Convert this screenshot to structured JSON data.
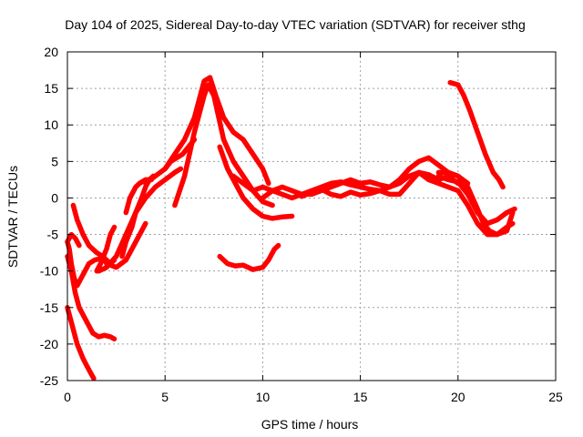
{
  "chart_data": {
    "type": "line",
    "title": "Day 104 of 2025, Sidereal Day-to-day VTEC variation (SDTVAR) for receiver sthg",
    "xlabel": "GPS time / hours",
    "ylabel": "SDTVAR / TECUs",
    "xlim": [
      0,
      25
    ],
    "ylim": [
      -25,
      20
    ],
    "xticks": [
      0,
      5,
      10,
      15,
      20,
      25
    ],
    "yticks": [
      -25,
      -20,
      -15,
      -10,
      -5,
      0,
      5,
      10,
      15,
      20
    ],
    "xtick_labels": [
      "0",
      "5",
      "10",
      "15",
      "20",
      "25"
    ],
    "ytick_labels": [
      "-25",
      "-20",
      "-15",
      "-10",
      "-5",
      "0",
      "5",
      "10",
      "15",
      "20"
    ],
    "grid": true,
    "series_color": "#ff0000",
    "series": [
      {
        "name": "arc-1",
        "x": [
          0.0,
          0.2,
          0.5,
          0.8,
          1.0,
          1.2,
          1.35
        ],
        "y": [
          -15,
          -17,
          -20,
          -22,
          -23,
          -24,
          -24.7
        ]
      },
      {
        "name": "arc-2",
        "x": [
          0.0,
          0.2,
          0.4,
          0.6,
          0.8,
          1.0,
          1.3,
          1.6,
          1.9,
          2.2,
          2.4
        ],
        "y": [
          -8,
          -10,
          -13,
          -15,
          -16,
          -17,
          -18.5,
          -19,
          -18.8,
          -19,
          -19.3
        ]
      },
      {
        "name": "arc-3",
        "x": [
          0.0,
          0.1,
          0.2,
          0.35,
          0.5,
          0.7,
          0.9,
          1.1,
          1.4,
          1.7,
          2.0
        ],
        "y": [
          -6,
          -7,
          -9,
          -11,
          -12,
          -11,
          -10,
          -9,
          -8.5,
          -8.3,
          -8.8
        ]
      },
      {
        "name": "arc-4",
        "x": [
          0.0,
          0.2,
          0.4,
          0.6
        ],
        "y": [
          -6,
          -5,
          -5.5,
          -6.5
        ]
      },
      {
        "name": "arc-5",
        "x": [
          0.3,
          0.5,
          0.8,
          1.1,
          1.5,
          1.8,
          2.0,
          2.2,
          2.4
        ],
        "y": [
          -1,
          -3,
          -5,
          -6.5,
          -7.5,
          -8,
          -8.5,
          -9,
          -8.5
        ]
      },
      {
        "name": "arc-6",
        "x": [
          1.5,
          1.7,
          2.0,
          2.2,
          2.4
        ],
        "y": [
          -10,
          -9,
          -7,
          -5,
          -4
        ]
      },
      {
        "name": "arc-7",
        "x": [
          1.6,
          2.0,
          2.5,
          3.0,
          3.5,
          4.0,
          4.5,
          5.0,
          5.5,
          5.8
        ],
        "y": [
          -10,
          -9.5,
          -8,
          -5,
          -2,
          0,
          1.5,
          2.5,
          3.5,
          4
        ]
      },
      {
        "name": "arc-8",
        "x": [
          2.0,
          2.5,
          3.0,
          3.3,
          3.6,
          4.0
        ],
        "y": [
          -9,
          -9.5,
          -8.5,
          -7,
          -5.5,
          -3.5
        ]
      },
      {
        "name": "arc-9",
        "x": [
          2.8,
          3.0,
          3.3,
          3.5,
          3.8,
          4.0,
          4.2,
          4.4
        ],
        "y": [
          -8,
          -6,
          -4,
          -2,
          0,
          1.5,
          2.5,
          3
        ]
      },
      {
        "name": "arc-10",
        "x": [
          3.0,
          3.2,
          3.5,
          3.7,
          4.0,
          4.3
        ],
        "y": [
          -2,
          0,
          1.5,
          2.0,
          2.5,
          2.5
        ]
      },
      {
        "name": "arc-11",
        "x": [
          4.0,
          4.5,
          5.0,
          5.5,
          6.0,
          6.5,
          6.8,
          7.0,
          7.3,
          7.6,
          8.0,
          8.5,
          9.0,
          9.5,
          10.0,
          10.3
        ],
        "y": [
          2,
          3,
          4,
          6,
          8,
          11,
          14,
          16,
          16.5,
          14,
          11,
          9,
          8,
          6,
          4,
          2
        ]
      },
      {
        "name": "arc-12",
        "x": [
          5.5,
          6.0,
          6.5,
          7.0,
          7.2,
          7.5,
          8.0,
          8.5,
          9.0,
          9.5,
          10.0,
          10.5
        ],
        "y": [
          -1,
          3,
          9,
          14,
          15.5,
          14,
          8,
          5,
          3,
          1,
          -0.5,
          -1
        ]
      },
      {
        "name": "arc-13",
        "x": [
          5.0,
          5.3,
          5.6,
          5.9,
          6.2,
          6.5
        ],
        "y": [
          4,
          5,
          5.5,
          6,
          7,
          8
        ]
      },
      {
        "name": "arc-14",
        "x": [
          7.8,
          8.2,
          8.6,
          9.0,
          9.5,
          10.0,
          10.5,
          11.0,
          11.5
        ],
        "y": [
          7,
          4,
          2,
          0,
          -1.5,
          -2.5,
          -2.8,
          -2.6,
          -2.5
        ]
      },
      {
        "name": "arc-15",
        "x": [
          7.8,
          8.2,
          8.6,
          9.0,
          9.5,
          10.0,
          10.3,
          10.6,
          10.8
        ],
        "y": [
          -8,
          -9,
          -9.3,
          -9.2,
          -9.8,
          -9.5,
          -8.5,
          -7,
          -6.5
        ]
      },
      {
        "name": "arc-16",
        "x": [
          8.5,
          9.0,
          9.5,
          10.0,
          10.5,
          11.0,
          11.5,
          12.0,
          12.5,
          13.0,
          13.5,
          14.0,
          14.5,
          15.0,
          15.5,
          16.0,
          16.5,
          17.0,
          17.5,
          18.0,
          18.5,
          19.0,
          19.5,
          20.0
        ],
        "y": [
          3,
          2,
          1,
          1.5,
          1,
          0.5,
          0,
          0.5,
          1,
          1.5,
          2,
          2.2,
          1.8,
          1.5,
          1.2,
          1.0,
          1.5,
          2.0,
          3.0,
          3.5,
          3.2,
          2.5,
          3.0,
          2.0
        ]
      },
      {
        "name": "arc-17",
        "x": [
          10.0,
          10.5,
          11.0,
          11.5,
          12.0,
          12.5,
          13.0,
          13.5,
          14.0,
          14.5,
          15.0,
          15.5,
          16.0,
          16.5,
          17.0,
          17.5,
          18.0,
          18.5,
          19.0,
          19.5,
          20.0,
          20.5
        ],
        "y": [
          0,
          1,
          1.5,
          1,
          0.5,
          0.5,
          1,
          1.5,
          2,
          2.5,
          2,
          2.2,
          1.8,
          1.5,
          2.5,
          4,
          5,
          5.5,
          4.5,
          3.5,
          3.0,
          2.0
        ]
      },
      {
        "name": "arc-18",
        "x": [
          12.0,
          12.5,
          13.0,
          13.5,
          14.0,
          14.5,
          15.0,
          15.5,
          16.0,
          16.5,
          17.0,
          17.5,
          18.0,
          18.5,
          19.0,
          19.5,
          20.0,
          20.5,
          21.0,
          21.5,
          22.0,
          22.5,
          22.8
        ],
        "y": [
          0.2,
          0.8,
          1.2,
          0.5,
          0.2,
          0.8,
          0.4,
          0.6,
          1.0,
          0.5,
          0.5,
          2.0,
          3.5,
          2.5,
          2.0,
          1.5,
          1.0,
          -1.0,
          -3.5,
          -5.0,
          -5.0,
          -4.0,
          -3.5
        ]
      },
      {
        "name": "arc-19",
        "x": [
          19.0,
          19.5,
          20.0,
          20.5,
          21.0,
          21.3,
          21.6,
          22.0,
          22.5,
          22.8
        ],
        "y": [
          3.5,
          3.5,
          3.0,
          1.5,
          -1.5,
          -3.5,
          -4.5,
          -5.0,
          -4.5,
          -2.0
        ]
      },
      {
        "name": "arc-20",
        "x": [
          19.0,
          19.5,
          20.0,
          20.5,
          21.0,
          21.5,
          22.0,
          22.5,
          22.9
        ],
        "y": [
          3.0,
          2.5,
          2.2,
          0.5,
          -2.0,
          -3.5,
          -3.0,
          -2.0,
          -1.5
        ]
      },
      {
        "name": "arc-21",
        "x": [
          19.6,
          20.0,
          20.3,
          20.6,
          21.0,
          21.4,
          21.8,
          22.1,
          22.3
        ],
        "y": [
          15.8,
          15.5,
          14,
          12,
          9,
          6,
          3.5,
          2.5,
          1.5
        ]
      }
    ]
  }
}
